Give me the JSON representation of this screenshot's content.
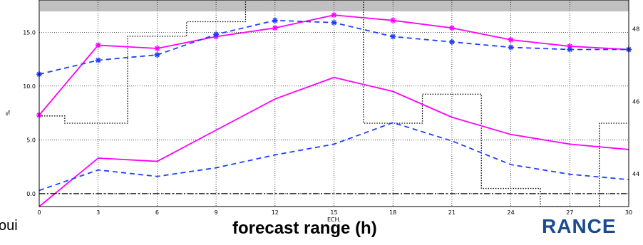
{
  "caption": "forecast range (h)",
  "left_fragment": "oui",
  "logo_fragment": "RANCE",
  "colors": {
    "magenta": "#ff00ff",
    "blue": "#1f3fff",
    "dotted": "#000000",
    "banner": "#c0c0c0"
  },
  "chart_data": {
    "type": "line",
    "xlabel": "ECH.",
    "ylabel": "%",
    "x": [
      0,
      3,
      6,
      9,
      12,
      15,
      18,
      21,
      24,
      27,
      30
    ],
    "xlim": [
      0,
      30
    ],
    "ylim": [
      -1.2,
      18
    ],
    "xticks": [
      "0",
      "3",
      "6",
      "9",
      "12",
      "15",
      "18",
      "21",
      "24",
      "27",
      "30"
    ],
    "yticks": [
      "0.0",
      "5.0",
      "10.0",
      "15.0"
    ],
    "y2ticks": [
      "44",
      "46",
      "48"
    ],
    "y2lim": [
      43.1,
      48.8
    ],
    "series": [
      {
        "style": "magenta-solid-star",
        "values": [
          7.3,
          13.8,
          13.5,
          14.6,
          15.4,
          16.6,
          16.1,
          15.4,
          14.3,
          13.7,
          13.4
        ]
      },
      {
        "style": "blue-dashed-star",
        "values": [
          11.1,
          12.4,
          12.9,
          14.8,
          16.1,
          15.9,
          14.6,
          14.1,
          13.6,
          13.4,
          13.4
        ]
      },
      {
        "style": "magenta-solid",
        "values": [
          -1.2,
          3.3,
          3.0,
          5.9,
          8.8,
          10.8,
          9.5,
          7.1,
          5.5,
          4.6,
          4.1
        ]
      },
      {
        "style": "blue-dashed",
        "values": [
          0.3,
          2.2,
          1.6,
          2.4,
          3.6,
          4.6,
          6.6,
          4.9,
          2.7,
          1.8,
          1.3
        ]
      },
      {
        "style": "black-dashdot",
        "values": [
          0,
          0,
          0,
          0,
          0,
          0,
          0,
          0,
          0,
          0,
          0
        ]
      }
    ],
    "step_series": {
      "axis": "right",
      "style": "black-dotted",
      "steps": [
        {
          "x0": 0,
          "x1": 1.3,
          "y": 45.6
        },
        {
          "x0": 1.3,
          "x1": 4.5,
          "y": 45.4
        },
        {
          "x0": 4.5,
          "x1": 7.5,
          "y": 47.8
        },
        {
          "x0": 7.5,
          "x1": 10.5,
          "y": 48.2
        },
        {
          "x0": 10.5,
          "x1": 16.5,
          "y": 48.8
        },
        {
          "x0": 16.5,
          "x1": 19.5,
          "y": 45.4
        },
        {
          "x0": 19.5,
          "x1": 22.5,
          "y": 46.2
        },
        {
          "x0": 22.5,
          "x1": 25.5,
          "y": 43.6
        },
        {
          "x0": 25.5,
          "x1": 28.5,
          "y": 43.1
        },
        {
          "x0": 28.5,
          "x1": 30,
          "y": 45.4
        }
      ]
    },
    "grid": true,
    "legend": "none"
  }
}
